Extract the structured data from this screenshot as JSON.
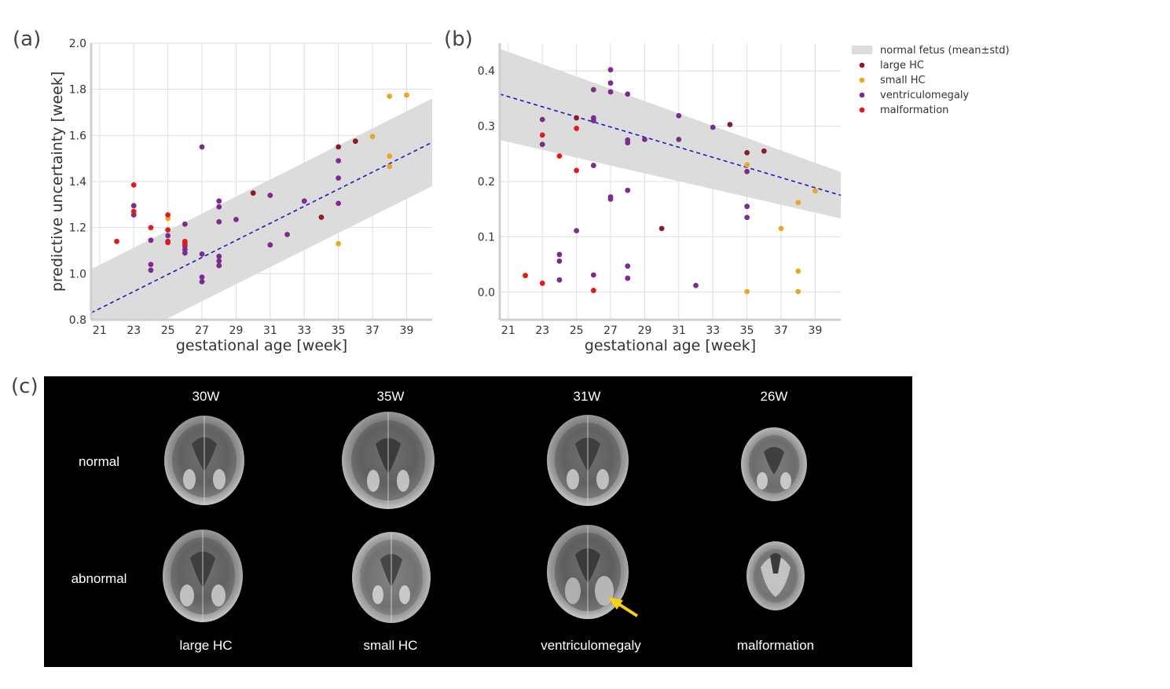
{
  "panels": {
    "a": "(a)",
    "b": "(b)",
    "c": "(c)"
  },
  "legend": [
    {
      "key": "normal",
      "label": "normal fetus (mean±std)",
      "color": "#dcdcdc"
    },
    {
      "key": "large_hc",
      "label": "large HC",
      "color": "#8b1a2b"
    },
    {
      "key": "small_hc",
      "label": "small HC",
      "color": "#e8a825"
    },
    {
      "key": "ventriculomegaly",
      "label": "ventriculomegaly",
      "color": "#7b2d8e"
    },
    {
      "key": "malformation",
      "label": "malformation",
      "color": "#e31a1c"
    }
  ],
  "chart_data": [
    {
      "type": "scatter",
      "id": "a",
      "xlabel": "gestational age [week]",
      "ylabel": "predictive uncertainty [week]",
      "xlim": [
        20.5,
        40.5
      ],
      "ylim": [
        0.8,
        2.0
      ],
      "xticks": [
        21,
        23,
        25,
        27,
        29,
        31,
        33,
        35,
        37,
        39
      ],
      "yticks": [
        0.8,
        1.0,
        1.2,
        1.4,
        1.6,
        1.8,
        2.0
      ],
      "ytick_labels": [
        "0.8",
        "1.0",
        "1.2",
        "1.4",
        "1.6",
        "1.8",
        "2.0"
      ],
      "mean_line": [
        [
          20.5,
          0.83
        ],
        [
          40.5,
          1.57
        ]
      ],
      "band_upper": [
        [
          20.5,
          1.02
        ],
        [
          40.5,
          1.76
        ]
      ],
      "band_lower": [
        [
          20.5,
          0.64
        ],
        [
          40.5,
          1.38
        ]
      ],
      "series": [
        {
          "name": "large_hc",
          "points": [
            [
              34,
              1.245
            ],
            [
              35,
              1.55
            ],
            [
              36,
              1.575
            ],
            [
              30,
              1.35
            ]
          ]
        },
        {
          "name": "small_hc",
          "points": [
            [
              38,
              1.77
            ],
            [
              39,
              1.775
            ],
            [
              37,
              1.595
            ],
            [
              38,
              1.51
            ],
            [
              38,
              1.465
            ],
            [
              35,
              1.13
            ],
            [
              25,
              1.24
            ]
          ]
        },
        {
          "name": "ventriculomegaly",
          "points": [
            [
              23,
              1.295
            ],
            [
              23,
              1.255
            ],
            [
              24,
              1.145
            ],
            [
              24,
              1.04
            ],
            [
              24,
              1.015
            ],
            [
              25,
              1.165
            ],
            [
              25,
              1.14
            ],
            [
              26,
              1.215
            ],
            [
              26,
              1.12
            ],
            [
              26,
              1.105
            ],
            [
              26,
              1.09
            ],
            [
              27,
              1.55
            ],
            [
              27,
              1.085
            ],
            [
              27,
              0.985
            ],
            [
              27,
              0.965
            ],
            [
              28,
              1.315
            ],
            [
              28,
              1.29
            ],
            [
              28,
              1.225
            ],
            [
              28,
              1.075
            ],
            [
              28,
              1.055
            ],
            [
              28,
              1.035
            ],
            [
              29,
              1.235
            ],
            [
              31,
              1.34
            ],
            [
              31,
              1.125
            ],
            [
              32,
              1.17
            ],
            [
              33,
              1.315
            ],
            [
              35,
              1.49
            ],
            [
              35,
              1.415
            ],
            [
              35,
              1.305
            ]
          ]
        },
        {
          "name": "malformation",
          "points": [
            [
              22,
              1.14
            ],
            [
              23,
              1.385
            ],
            [
              23,
              1.27
            ],
            [
              24,
              1.2
            ],
            [
              25,
              1.255
            ],
            [
              25,
              1.19
            ],
            [
              25,
              1.135
            ],
            [
              26,
              1.14
            ],
            [
              26,
              1.13
            ]
          ]
        }
      ]
    },
    {
      "type": "scatter",
      "id": "b",
      "xlabel": "gestational age [week]",
      "ylabel": "",
      "xlim": [
        20.5,
        40.5
      ],
      "ylim": [
        -0.05,
        0.45
      ],
      "xticks": [
        21,
        23,
        25,
        27,
        29,
        31,
        33,
        35,
        37,
        39
      ],
      "yticks": [
        0.0,
        0.1,
        0.2,
        0.3,
        0.4
      ],
      "ytick_labels": [
        "0.0",
        "0.1",
        "0.2",
        "0.3",
        "0.4"
      ],
      "mean_line": [
        [
          20.5,
          0.358
        ],
        [
          40.5,
          0.175
        ]
      ],
      "band_upper": [
        [
          20.5,
          0.44
        ],
        [
          40.5,
          0.217
        ]
      ],
      "band_lower": [
        [
          20.5,
          0.275
        ],
        [
          40.5,
          0.133
        ]
      ],
      "series": [
        {
          "name": "large_hc",
          "points": [
            [
              25,
              0.315
            ],
            [
              34,
              0.303
            ],
            [
              35,
              0.252
            ],
            [
              36,
              0.255
            ],
            [
              30,
              0.115
            ]
          ]
        },
        {
          "name": "small_hc",
          "points": [
            [
              35,
              0.23
            ],
            [
              37,
              0.115
            ],
            [
              38,
              0.162
            ],
            [
              38,
              0.038
            ],
            [
              38,
              0.001
            ],
            [
              39,
              0.183
            ],
            [
              35,
              0.001
            ]
          ]
        },
        {
          "name": "ventriculomegaly",
          "points": [
            [
              23,
              0.312
            ],
            [
              23,
              0.267
            ],
            [
              24,
              0.068
            ],
            [
              24,
              0.056
            ],
            [
              24,
              0.022
            ],
            [
              25,
              0.111
            ],
            [
              26,
              0.366
            ],
            [
              26,
              0.315
            ],
            [
              26,
              0.31
            ],
            [
              26,
              0.229
            ],
            [
              26,
              0.031
            ],
            [
              27,
              0.402
            ],
            [
              27,
              0.378
            ],
            [
              27,
              0.362
            ],
            [
              27,
              0.172
            ],
            [
              27,
              0.168
            ],
            [
              28,
              0.358
            ],
            [
              28,
              0.275
            ],
            [
              28,
              0.27
            ],
            [
              28,
              0.184
            ],
            [
              28,
              0.047
            ],
            [
              28,
              0.025
            ],
            [
              29,
              0.276
            ],
            [
              31,
              0.319
            ],
            [
              31,
              0.276
            ],
            [
              32,
              0.012
            ],
            [
              33,
              0.298
            ],
            [
              35,
              0.218
            ],
            [
              35,
              0.155
            ],
            [
              35,
              0.135
            ]
          ]
        },
        {
          "name": "malformation",
          "points": [
            [
              22,
              0.03
            ],
            [
              23,
              0.284
            ],
            [
              23,
              0.016
            ],
            [
              24,
              0.246
            ],
            [
              25,
              0.296
            ],
            [
              25,
              0.22
            ],
            [
              26,
              0.003
            ]
          ]
        }
      ]
    }
  ],
  "mri": {
    "columns": [
      {
        "age": "30W",
        "caption": "large HC"
      },
      {
        "age": "35W",
        "caption": "small HC"
      },
      {
        "age": "31W",
        "caption": "ventriculomegaly"
      },
      {
        "age": "26W",
        "caption": "malformation"
      }
    ],
    "rows": [
      "normal",
      "abnormal"
    ],
    "arrow_color": "#f5d40f"
  }
}
